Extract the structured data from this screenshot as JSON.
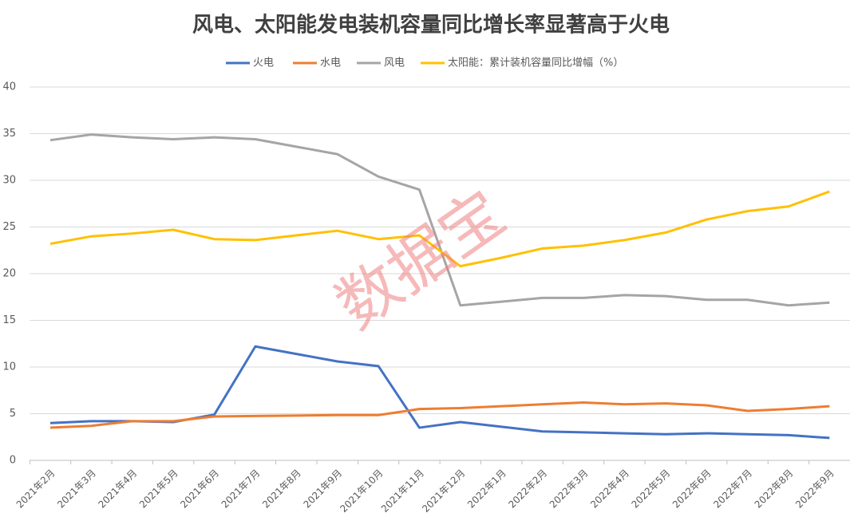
{
  "chart_data": {
    "type": "line",
    "title": "风电、太阳能发电装机容量同比增长率显著高于火电",
    "watermark": "数据宝",
    "categories": [
      "2021年2月",
      "2021年3月",
      "2021年4月",
      "2021年5月",
      "2021年6月",
      "2021年7月",
      "2021年8月",
      "2021年9月",
      "2021年10月",
      "2021年11月",
      "2021年12月",
      "2022年1月",
      "2022年2月",
      "2022年3月",
      "2022年4月",
      "2022年5月",
      "2022年6月",
      "2022年7月",
      "2022年8月",
      "2022年9月"
    ],
    "series": [
      {
        "name": "火电",
        "color": "#4472c4",
        "values": [
          4.0,
          4.2,
          4.2,
          4.1,
          4.9,
          12.2,
          11.4,
          10.6,
          10.1,
          3.5,
          4.1,
          3.6,
          3.1,
          3.0,
          2.9,
          2.8,
          2.9,
          2.8,
          2.7,
          2.4
        ]
      },
      {
        "name": "水电",
        "color": "#ed7d31",
        "values": [
          3.5,
          3.7,
          4.2,
          4.2,
          4.7,
          4.75,
          4.8,
          4.85,
          4.85,
          5.5,
          5.6,
          5.8,
          6.0,
          6.2,
          6.0,
          6.1,
          5.9,
          5.3,
          5.5,
          5.8
        ]
      },
      {
        "name": "风电",
        "color": "#a5a5a5",
        "values": [
          34.3,
          34.9,
          34.6,
          34.4,
          34.6,
          34.4,
          33.6,
          32.8,
          30.4,
          29.0,
          16.6,
          17.0,
          17.4,
          17.4,
          17.7,
          17.6,
          17.2,
          17.2,
          16.6,
          16.9
        ]
      },
      {
        "name": "太阳能：累计装机容量同比增幅（%）",
        "color": "#ffc000",
        "values": [
          23.2,
          24.0,
          24.3,
          24.7,
          23.7,
          23.6,
          24.1,
          24.6,
          23.7,
          24.1,
          20.8,
          21.7,
          22.7,
          23.0,
          23.6,
          24.4,
          25.8,
          26.7,
          27.2,
          28.8
        ]
      }
    ],
    "ylim": [
      0,
      40
    ],
    "yticks": [
      0,
      5,
      10,
      15,
      20,
      25,
      30,
      35,
      40
    ],
    "grid": true,
    "legend": "top"
  }
}
